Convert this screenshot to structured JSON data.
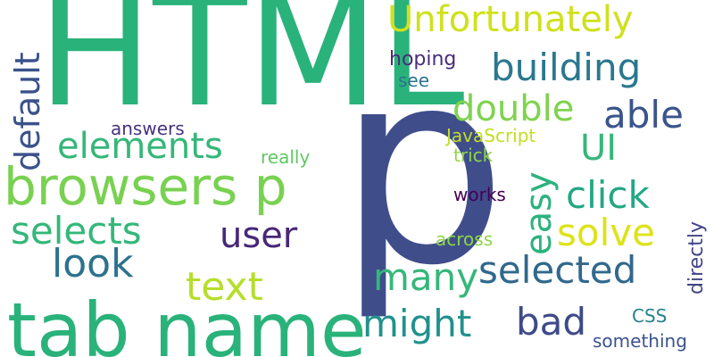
{
  "wordcloud": {
    "words": [
      {
        "id": "html",
        "text": "HTML",
        "color": "#2ab27b"
      },
      {
        "id": "p",
        "text": "p",
        "color": "#3f4d8b"
      },
      {
        "id": "tab_name",
        "text": "tab name",
        "color": "#2ab27b"
      },
      {
        "id": "browsers_p",
        "text": "browsers p",
        "color": "#79d151"
      },
      {
        "id": "unfortunately",
        "text": "Unfortunately",
        "color": "#cfe11c"
      },
      {
        "id": "building",
        "text": "building",
        "color": "#2a788e"
      },
      {
        "id": "double",
        "text": "double",
        "color": "#7fd34e"
      },
      {
        "id": "able",
        "text": "able",
        "color": "#3a548c"
      },
      {
        "id": "ui",
        "text": "UI",
        "color": "#35b779"
      },
      {
        "id": "elements",
        "text": "elements",
        "color": "#35b779"
      },
      {
        "id": "default",
        "text": "default",
        "color": "#3b528b"
      },
      {
        "id": "click",
        "text": "click",
        "color": "#22a884"
      },
      {
        "id": "easy",
        "text": "easy",
        "color": "#2db27d"
      },
      {
        "id": "selects",
        "text": "selects",
        "color": "#35b779"
      },
      {
        "id": "user",
        "text": "user",
        "color": "#482878"
      },
      {
        "id": "solve",
        "text": "solve",
        "color": "#dde318"
      },
      {
        "id": "look",
        "text": "look",
        "color": "#2c728e"
      },
      {
        "id": "selected",
        "text": "selected",
        "color": "#31688e"
      },
      {
        "id": "text",
        "text": "text",
        "color": "#b5de2b"
      },
      {
        "id": "many",
        "text": "many",
        "color": "#35b779"
      },
      {
        "id": "might",
        "text": "might",
        "color": "#21918c"
      },
      {
        "id": "bad",
        "text": "bad",
        "color": "#3e4a89"
      },
      {
        "id": "hoping",
        "text": "hoping",
        "color": "#472c7a"
      },
      {
        "id": "see",
        "text": "see",
        "color": "#2c728e"
      },
      {
        "id": "javascript",
        "text": "JavaScript",
        "color": "#c2df23"
      },
      {
        "id": "answers",
        "text": "answers",
        "color": "#46337e"
      },
      {
        "id": "really",
        "text": "really",
        "color": "#5ec962"
      },
      {
        "id": "trick",
        "text": "trick",
        "color": "#90d743"
      },
      {
        "id": "works",
        "text": "works",
        "color": "#440154"
      },
      {
        "id": "across",
        "text": "across",
        "color": "#8ed645"
      },
      {
        "id": "directly",
        "text": "directly",
        "color": "#414487"
      },
      {
        "id": "css",
        "text": "CSS",
        "color": "#26828e"
      },
      {
        "id": "something",
        "text": "something",
        "color": "#3b528b"
      }
    ]
  }
}
